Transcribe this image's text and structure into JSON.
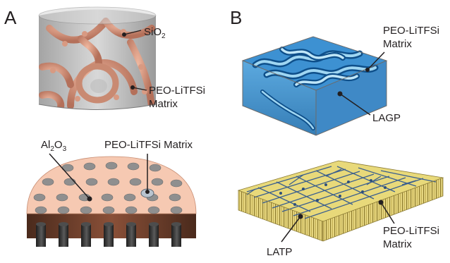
{
  "panels": [
    {
      "letter": "A"
    },
    {
      "letter": "B"
    }
  ],
  "labels": {
    "sio2": {
      "base": "SiO",
      "sub": "2"
    },
    "a_top_matrix": [
      "PEO-LiTFSi",
      "Matrix"
    ],
    "al2o3": {
      "p1": "Al",
      "s1": "2",
      "p2": "O",
      "s2": "3"
    },
    "a_bottom_matrix": "PEO-LiTFSi Matrix",
    "b_top_matrix": [
      "PEO-LiTFSi",
      "Matrix"
    ],
    "lagp": "LAGP",
    "latp": "LATP",
    "b_bottom_matrix": [
      "PEO-LiTFSi",
      "Matrix"
    ]
  },
  "colors": {
    "sio2_particles": "#c98a72",
    "peo_matrix_orange": "#f6c9b2",
    "al2o3_rods": "#3a3a3a",
    "lagp_blue": "#2f86c9",
    "latp_yellow": "#e8d97a",
    "polymer_strands": "#3b5f8f"
  }
}
